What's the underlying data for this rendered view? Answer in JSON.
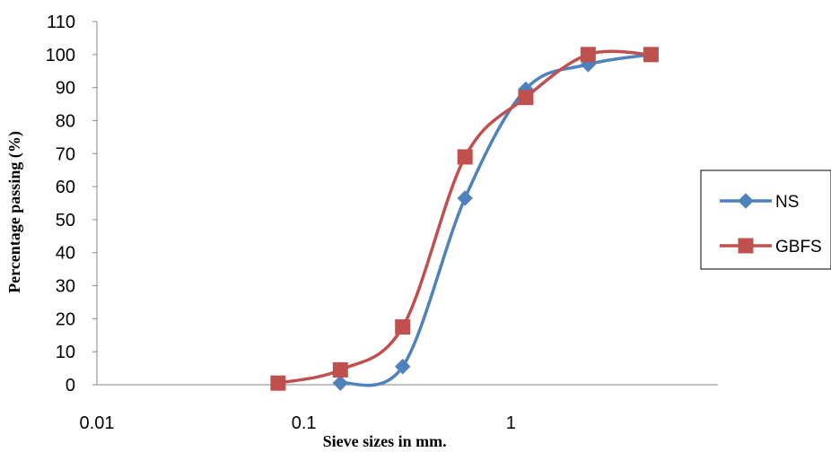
{
  "chart_data": {
    "type": "scatter",
    "title": "",
    "xlabel": "Sieve sizes in mm.",
    "ylabel": "Percentage passing  (%)",
    "xscale": "log",
    "xlim": [
      0.01,
      10
    ],
    "ylim": [
      0,
      110
    ],
    "x_ticks": [
      "0.01",
      "0.1",
      "1"
    ],
    "y_ticks": [
      "0",
      "10",
      "20",
      "30",
      "40",
      "50",
      "60",
      "70",
      "80",
      "90",
      "100",
      "110"
    ],
    "grid": false,
    "legend_position": "right",
    "series": [
      {
        "name": "NS",
        "color": "#4F81BD",
        "marker": "diamond",
        "x": [
          0.15,
          0.3,
          0.6,
          1.18,
          2.36,
          4.75
        ],
        "y": [
          0.5,
          5.5,
          56.5,
          89.5,
          97,
          100
        ]
      },
      {
        "name": "GBFS",
        "color": "#C0504D",
        "marker": "square",
        "x": [
          0.075,
          0.15,
          0.3,
          0.6,
          1.18,
          2.36,
          4.75
        ],
        "y": [
          0.5,
          4.5,
          17.5,
          69,
          87,
          100,
          100
        ]
      }
    ]
  }
}
